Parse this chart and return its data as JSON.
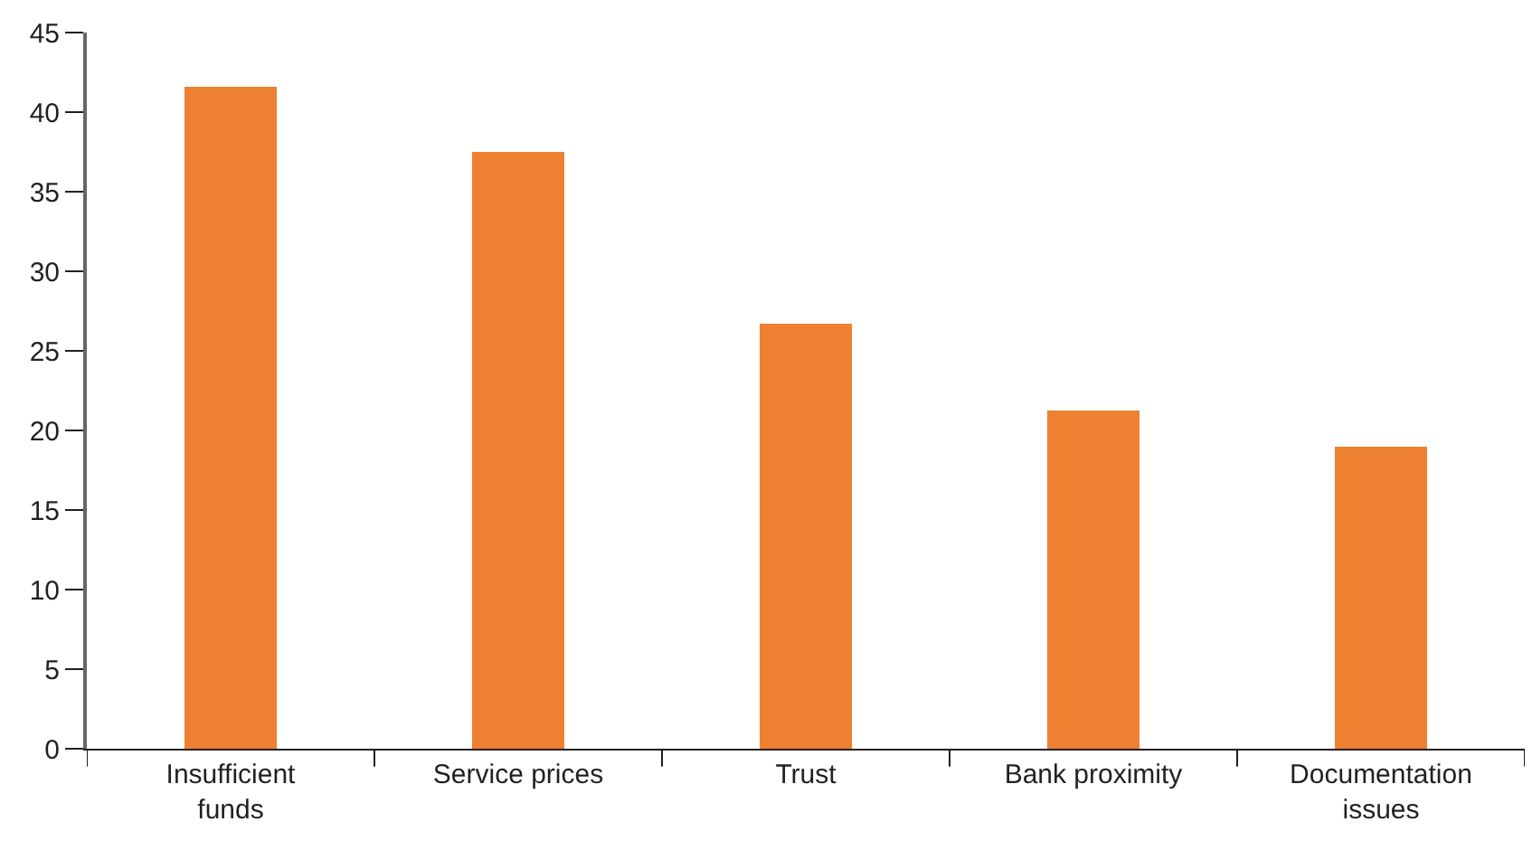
{
  "chart_data": {
    "type": "bar",
    "categories": [
      "Insufficient funds",
      "Service prices",
      "Trust",
      "Bank proximity",
      "Documentation issues"
    ],
    "values": [
      41.6,
      37.5,
      26.7,
      21.3,
      19.0
    ],
    "color": "#ee8031",
    "ylim": [
      0,
      45
    ],
    "yticks": [
      0,
      5,
      10,
      15,
      20,
      25,
      30,
      35,
      40,
      45
    ]
  }
}
